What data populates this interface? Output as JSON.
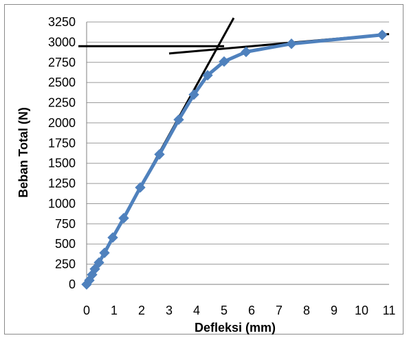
{
  "chart_data": {
    "type": "scatter",
    "title": "",
    "xlabel": "Defleksi (mm)",
    "ylabel": "Beban Total (N)",
    "xlim": [
      0,
      11
    ],
    "ylim": [
      0,
      3250
    ],
    "x_ticks": [
      0,
      1,
      2,
      3,
      4,
      5,
      6,
      7,
      8,
      9,
      10,
      11
    ],
    "y_ticks": [
      0,
      250,
      500,
      750,
      1000,
      1250,
      1500,
      1750,
      2000,
      2250,
      2500,
      2750,
      3000,
      3250
    ],
    "grid": "horizontal",
    "legend": "none",
    "series": [
      {
        "color": "#4F81BD",
        "marker": "diamond",
        "x": [
          0,
          0.1,
          0.2,
          0.3,
          0.45,
          0.65,
          0.95,
          1.35,
          1.95,
          2.65,
          3.35,
          3.9,
          4.4,
          5.0,
          5.8,
          7.45,
          10.75
        ],
        "y": [
          0,
          50,
          120,
          190,
          270,
          390,
          580,
          820,
          1200,
          1610,
          2040,
          2350,
          2590,
          2760,
          2880,
          2980,
          3090
        ]
      }
    ],
    "annotation_lines": [
      {
        "color": "#000000",
        "x": [
          0,
          5.35
        ],
        "y": [
          0,
          3300
        ]
      },
      {
        "color": "#000000",
        "x": [
          -0.3,
          5.0
        ],
        "y": [
          2950,
          2950
        ]
      },
      {
        "color": "#000000",
        "x": [
          3.0,
          11.0
        ],
        "y": [
          2860,
          3100
        ]
      }
    ]
  }
}
